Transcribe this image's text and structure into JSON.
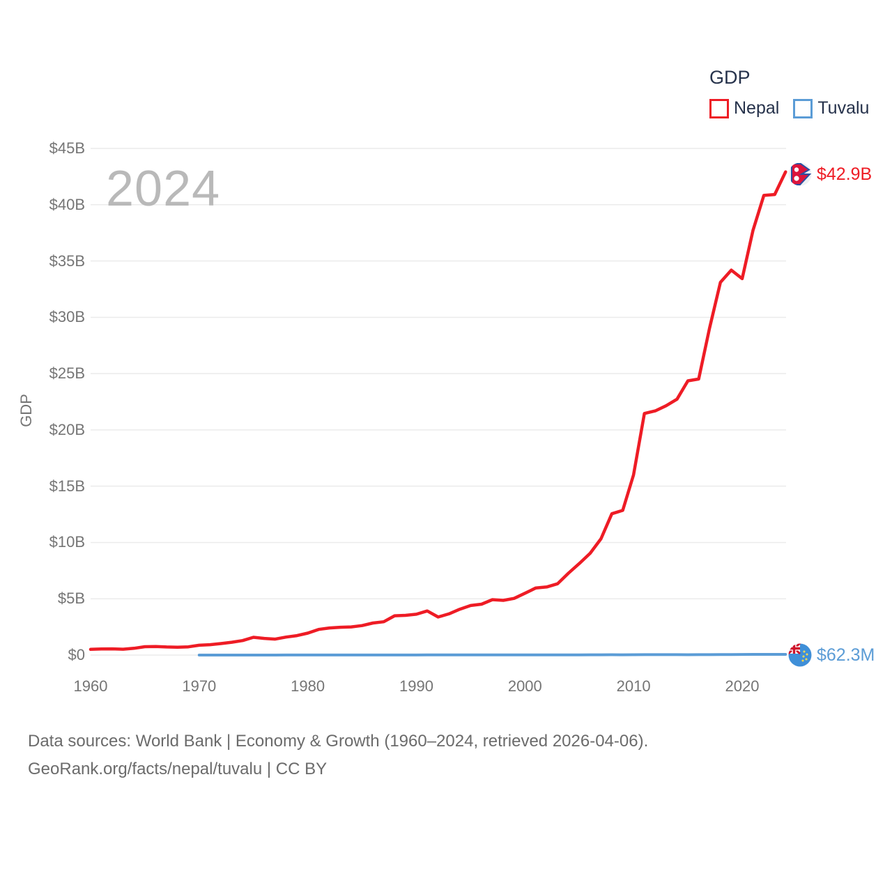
{
  "legend": {
    "title": "GDP",
    "items": [
      {
        "label": "Nepal",
        "color": "#ee1c25"
      },
      {
        "label": "Tuvalu",
        "color": "#5b9cd6"
      }
    ]
  },
  "watermark_year": "2024",
  "y_axis_title": "GDP",
  "end_labels": {
    "nepal": {
      "value": "$42.9B",
      "flag": "nepal-flag-icon"
    },
    "tuvalu": {
      "value": "$62.3M",
      "flag": "tuvalu-flag-icon"
    }
  },
  "footer": {
    "line1": "Data sources: World Bank | Economy & Growth (1960–2024, retrieved 2026-04-06).",
    "line2": "GeoRank.org/facts/nepal/tuvalu | CC BY"
  },
  "chart_data": {
    "type": "line",
    "title": "GDP",
    "xlabel": "",
    "ylabel": "GDP",
    "ylim_billions": [
      0,
      45
    ],
    "xlim_years": [
      1960,
      2024
    ],
    "grid": true,
    "legend_position": "top-right",
    "y_ticks": [
      {
        "label": "$0",
        "billions": 0
      },
      {
        "label": "$5B",
        "billions": 5
      },
      {
        "label": "$10B",
        "billions": 10
      },
      {
        "label": "$15B",
        "billions": 15
      },
      {
        "label": "$20B",
        "billions": 20
      },
      {
        "label": "$25B",
        "billions": 25
      },
      {
        "label": "$30B",
        "billions": 30
      },
      {
        "label": "$35B",
        "billions": 35
      },
      {
        "label": "$40B",
        "billions": 40
      },
      {
        "label": "$45B",
        "billions": 45
      }
    ],
    "x_ticks": [
      1960,
      1970,
      1980,
      1990,
      2000,
      2010,
      2020
    ],
    "series": [
      {
        "name": "Nepal",
        "color": "#ee1c25",
        "stroke_width": 4.5,
        "unit": "billions USD",
        "start_year": 1960,
        "end_value_label": "$42.9B",
        "values_billions": [
          0.51,
          0.54,
          0.55,
          0.52,
          0.6,
          0.74,
          0.76,
          0.72,
          0.7,
          0.73,
          0.87,
          0.92,
          1.02,
          1.14,
          1.29,
          1.58,
          1.48,
          1.42,
          1.6,
          1.73,
          1.95,
          2.28,
          2.41,
          2.47,
          2.5,
          2.62,
          2.85,
          2.96,
          3.49,
          3.53,
          3.63,
          3.92,
          3.38,
          3.66,
          4.07,
          4.4,
          4.52,
          4.92,
          4.86,
          5.03,
          5.49,
          5.96,
          6.05,
          6.33,
          7.27,
          8.13,
          9.04,
          10.33,
          12.55,
          12.85,
          16.0,
          21.46,
          21.69,
          22.15,
          22.73,
          24.36,
          24.52,
          29.04,
          33.11,
          34.19,
          33.43,
          37.74,
          40.83,
          40.91,
          42.92
        ]
      },
      {
        "name": "Tuvalu",
        "color": "#5b9cd6",
        "stroke_width": 4,
        "unit": "millions USD",
        "start_year": 1970,
        "end_value_label": "$62.3M",
        "values_millions": [
          1.0,
          1.2,
          1.3,
          1.7,
          2.0,
          2.5,
          2.6,
          3.0,
          3.5,
          4.0,
          4.2,
          4.4,
          4.3,
          4.4,
          4.6,
          4.4,
          5.5,
          7.0,
          8.0,
          8.6,
          9.0,
          9.5,
          10.0,
          10.0,
          10.8,
          11.4,
          11.7,
          12.0,
          12.2,
          12.7,
          12.9,
          13.0,
          14.2,
          18.0,
          20.4,
          21.5,
          23.3,
          26.6,
          30.7,
          27.7,
          31.8,
          39.0,
          38.5,
          38.3,
          35.8,
          33.2,
          34.8,
          39.9,
          42.6,
          47.2,
          53.6,
          60.0,
          60.3,
          62.2,
          62.3
        ]
      }
    ]
  }
}
